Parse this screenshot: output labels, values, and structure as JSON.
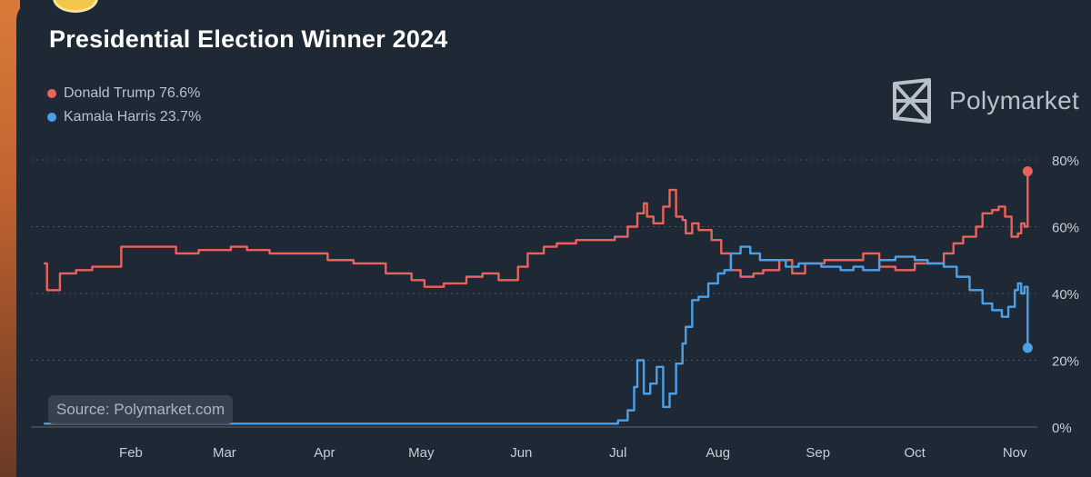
{
  "title": "Presidential Election Winner 2024",
  "brand": "Polymarket",
  "source": "Source: Polymarket.com",
  "legend": [
    {
      "label": "Donald Trump 76.6%",
      "color": "#e8635b"
    },
    {
      "label": "Kamala Harris 23.7%",
      "color": "#4ca0e8"
    }
  ],
  "chart_data": {
    "type": "line",
    "title": "Presidential Election Winner 2024",
    "xlabel": "",
    "ylabel": "",
    "x_ticks": [
      "Feb",
      "Mar",
      "Apr",
      "May",
      "Jun",
      "Jul",
      "Aug",
      "Sep",
      "Oct",
      "Nov"
    ],
    "y_ticks": [
      "0%",
      "20%",
      "40%",
      "60%",
      "80%"
    ],
    "ylim": [
      0,
      80
    ],
    "grid": true,
    "legend_position": "top-left",
    "series": [
      {
        "name": "Donald Trump",
        "color": "#e8635b",
        "points": [
          [
            "2024-01-05",
            49
          ],
          [
            "2024-01-06",
            41
          ],
          [
            "2024-01-08",
            41
          ],
          [
            "2024-01-10",
            46
          ],
          [
            "2024-01-15",
            47
          ],
          [
            "2024-01-20",
            48
          ],
          [
            "2024-01-27",
            48
          ],
          [
            "2024-01-29",
            54
          ],
          [
            "2024-02-05",
            54
          ],
          [
            "2024-02-12",
            54
          ],
          [
            "2024-02-15",
            52
          ],
          [
            "2024-02-22",
            53
          ],
          [
            "2024-02-28",
            53
          ],
          [
            "2024-03-03",
            54
          ],
          [
            "2024-03-08",
            53
          ],
          [
            "2024-03-15",
            52
          ],
          [
            "2024-03-25",
            52
          ],
          [
            "2024-04-02",
            50
          ],
          [
            "2024-04-10",
            49
          ],
          [
            "2024-04-20",
            46
          ],
          [
            "2024-04-28",
            44
          ],
          [
            "2024-05-02",
            42
          ],
          [
            "2024-05-08",
            43
          ],
          [
            "2024-05-12",
            43
          ],
          [
            "2024-05-15",
            45
          ],
          [
            "2024-05-20",
            46
          ],
          [
            "2024-05-25",
            44
          ],
          [
            "2024-05-29",
            44
          ],
          [
            "2024-05-31",
            48
          ],
          [
            "2024-06-03",
            52
          ],
          [
            "2024-06-08",
            54
          ],
          [
            "2024-06-12",
            55
          ],
          [
            "2024-06-18",
            56
          ],
          [
            "2024-06-25",
            56
          ],
          [
            "2024-06-30",
            57
          ],
          [
            "2024-07-04",
            60
          ],
          [
            "2024-07-07",
            64
          ],
          [
            "2024-07-09",
            67
          ],
          [
            "2024-07-10",
            63
          ],
          [
            "2024-07-12",
            61
          ],
          [
            "2024-07-14",
            61
          ],
          [
            "2024-07-15",
            66
          ],
          [
            "2024-07-17",
            71
          ],
          [
            "2024-07-19",
            63
          ],
          [
            "2024-07-21",
            62
          ],
          [
            "2024-07-22",
            58
          ],
          [
            "2024-07-24",
            61
          ],
          [
            "2024-07-26",
            59
          ],
          [
            "2024-07-30",
            56
          ],
          [
            "2024-08-02",
            52
          ],
          [
            "2024-08-05",
            47
          ],
          [
            "2024-08-08",
            45
          ],
          [
            "2024-08-12",
            46
          ],
          [
            "2024-08-15",
            47
          ],
          [
            "2024-08-20",
            50
          ],
          [
            "2024-08-24",
            46
          ],
          [
            "2024-08-28",
            49
          ],
          [
            "2024-09-03",
            50
          ],
          [
            "2024-09-08",
            50
          ],
          [
            "2024-09-12",
            50
          ],
          [
            "2024-09-15",
            52
          ],
          [
            "2024-09-20",
            48
          ],
          [
            "2024-09-25",
            47
          ],
          [
            "2024-10-01",
            49
          ],
          [
            "2024-10-05",
            49
          ],
          [
            "2024-10-10",
            52
          ],
          [
            "2024-10-13",
            55
          ],
          [
            "2024-10-16",
            57
          ],
          [
            "2024-10-20",
            60
          ],
          [
            "2024-10-22",
            64
          ],
          [
            "2024-10-25",
            65
          ],
          [
            "2024-10-27",
            66
          ],
          [
            "2024-10-29",
            63
          ],
          [
            "2024-10-31",
            57
          ],
          [
            "2024-11-02",
            58
          ],
          [
            "2024-11-03",
            61
          ],
          [
            "2024-11-04",
            60
          ],
          [
            "2024-11-05",
            76.6
          ]
        ]
      },
      {
        "name": "Kamala Harris",
        "color": "#4ca0e8",
        "points": [
          [
            "2024-01-05",
            1
          ],
          [
            "2024-02-05",
            1
          ],
          [
            "2024-03-05",
            1
          ],
          [
            "2024-04-05",
            1
          ],
          [
            "2024-05-05",
            1
          ],
          [
            "2024-06-05",
            1
          ],
          [
            "2024-06-28",
            1
          ],
          [
            "2024-07-01",
            2
          ],
          [
            "2024-07-04",
            5
          ],
          [
            "2024-07-06",
            12
          ],
          [
            "2024-07-07",
            20
          ],
          [
            "2024-07-09",
            10
          ],
          [
            "2024-07-11",
            13
          ],
          [
            "2024-07-13",
            18
          ],
          [
            "2024-07-15",
            6
          ],
          [
            "2024-07-17",
            10
          ],
          [
            "2024-07-19",
            19
          ],
          [
            "2024-07-21",
            25
          ],
          [
            "2024-07-22",
            30
          ],
          [
            "2024-07-24",
            38
          ],
          [
            "2024-07-26",
            39
          ],
          [
            "2024-07-29",
            43
          ],
          [
            "2024-08-01",
            46
          ],
          [
            "2024-08-03",
            47
          ],
          [
            "2024-08-05",
            52
          ],
          [
            "2024-08-08",
            54
          ],
          [
            "2024-08-11",
            52
          ],
          [
            "2024-08-14",
            50
          ],
          [
            "2024-08-18",
            50
          ],
          [
            "2024-08-22",
            48
          ],
          [
            "2024-08-26",
            49
          ],
          [
            "2024-09-02",
            48
          ],
          [
            "2024-09-08",
            47
          ],
          [
            "2024-09-12",
            48
          ],
          [
            "2024-09-15",
            47
          ],
          [
            "2024-09-20",
            50
          ],
          [
            "2024-09-25",
            51
          ],
          [
            "2024-10-01",
            50
          ],
          [
            "2024-10-05",
            49
          ],
          [
            "2024-10-10",
            48
          ],
          [
            "2024-10-14",
            45
          ],
          [
            "2024-10-18",
            41
          ],
          [
            "2024-10-22",
            37
          ],
          [
            "2024-10-25",
            35
          ],
          [
            "2024-10-28",
            33
          ],
          [
            "2024-10-30",
            36
          ],
          [
            "2024-11-01",
            41
          ],
          [
            "2024-11-02",
            43
          ],
          [
            "2024-11-03",
            40
          ],
          [
            "2024-11-04",
            42
          ],
          [
            "2024-11-05",
            23.7
          ]
        ]
      }
    ]
  }
}
